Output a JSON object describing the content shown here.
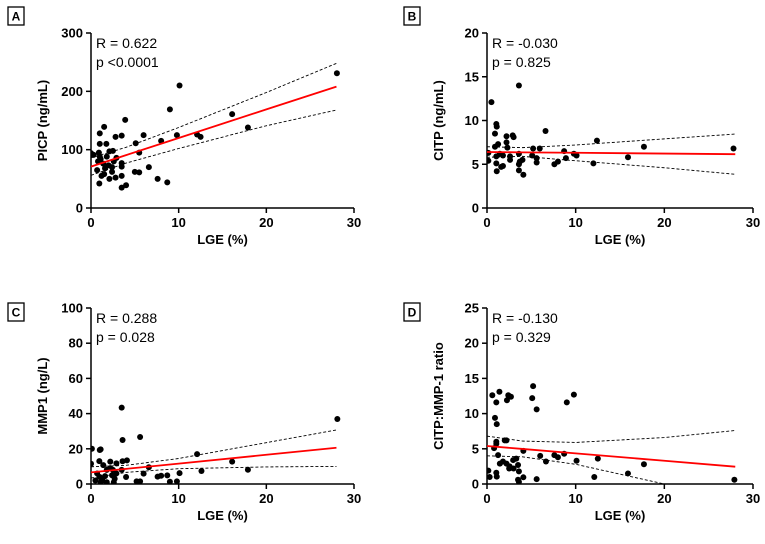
{
  "chart_data": [
    {
      "panel": "A",
      "type": "scatter",
      "xlabel": "LGE (%)",
      "ylabel": "PICP (ng/mL)",
      "xlim": [
        0,
        30
      ],
      "ylim": [
        0,
        300
      ],
      "xticks": [
        "0",
        "10",
        "20",
        "30"
      ],
      "yticks": [
        "0",
        "100",
        "200",
        "300"
      ],
      "stats": [
        "R = 0.622",
        "p <0.0001"
      ],
      "points": [
        [
          28.05,
          231
        ],
        [
          10.1,
          210
        ],
        [
          9.0,
          169
        ],
        [
          16.1,
          161
        ],
        [
          17.9,
          138
        ],
        [
          12.1,
          126
        ],
        [
          12.5,
          122
        ],
        [
          9.8,
          125
        ],
        [
          8.0,
          115
        ],
        [
          3.9,
          151
        ],
        [
          1.5,
          139
        ],
        [
          1.0,
          128
        ],
        [
          2.8,
          122
        ],
        [
          3.5,
          124
        ],
        [
          6.0,
          125
        ],
        [
          5.1,
          111
        ],
        [
          5.5,
          95
        ],
        [
          6.6,
          70
        ],
        [
          7.6,
          50
        ],
        [
          8.7,
          44
        ],
        [
          5.0,
          62
        ],
        [
          5.5,
          61
        ],
        [
          3.5,
          35
        ],
        [
          4.0,
          39
        ],
        [
          0.95,
          42
        ],
        [
          1.2,
          55
        ],
        [
          2.1,
          50
        ],
        [
          2.8,
          52
        ],
        [
          3.5,
          55
        ],
        [
          1.0,
          110
        ],
        [
          1.75,
          110
        ],
        [
          0,
          94
        ],
        [
          0.3,
          91
        ],
        [
          0.9,
          95
        ],
        [
          1.0,
          88
        ],
        [
          2.1,
          97
        ],
        [
          2.5,
          98
        ],
        [
          2.9,
          86
        ],
        [
          0.8,
          80
        ],
        [
          1.4,
          76
        ],
        [
          2.0,
          73
        ],
        [
          2.4,
          70
        ],
        [
          0.7,
          65
        ],
        [
          1.6,
          68
        ],
        [
          2.4,
          62
        ],
        [
          1.1,
          84
        ],
        [
          1.8,
          88
        ],
        [
          3.5,
          71
        ],
        [
          3.5,
          77
        ],
        [
          1.5,
          58
        ],
        [
          2.6,
          80
        ]
      ],
      "fit": {
        "x": [
          0,
          4,
          10,
          20,
          28
        ],
        "y": [
          71,
          90.6,
          120,
          169,
          208
        ]
      },
      "ci_upper": [
        86,
        104,
        138,
        198,
        248
      ],
      "ci_lower": [
        56,
        77,
        102,
        141,
        168
      ]
    },
    {
      "panel": "B",
      "type": "scatter",
      "xlabel": "LGE (%)",
      "ylabel": "CITP (ng/mL)",
      "xlim": [
        0,
        30
      ],
      "ylim": [
        0,
        20
      ],
      "xticks": [
        "0",
        "10",
        "20",
        "30"
      ],
      "yticks": [
        "0",
        "5",
        "10",
        "15",
        "20"
      ],
      "stats": [
        "R = -0.030",
        "p = 0.825"
      ],
      "points": [
        [
          3.6,
          14.0
        ],
        [
          0.5,
          12.1
        ],
        [
          1.05,
          9.6
        ],
        [
          1.1,
          9.3
        ],
        [
          0.9,
          8.5
        ],
        [
          2.2,
          8.2
        ],
        [
          2.9,
          8.3
        ],
        [
          3.0,
          8.1
        ],
        [
          6.6,
          8.8
        ],
        [
          12.4,
          7.7
        ],
        [
          17.7,
          7.0
        ],
        [
          27.8,
          6.8
        ],
        [
          15.9,
          5.8
        ],
        [
          12.0,
          5.1
        ],
        [
          8.7,
          6.5
        ],
        [
          8.9,
          5.7
        ],
        [
          9.8,
          6.2
        ],
        [
          10.1,
          6.0
        ],
        [
          7.6,
          5.0
        ],
        [
          8.0,
          5.3
        ],
        [
          5.2,
          6.8
        ],
        [
          5.95,
          6.8
        ],
        [
          5.1,
          6.0
        ],
        [
          5.6,
          5.7
        ],
        [
          5.6,
          5.2
        ],
        [
          3.6,
          6.2
        ],
        [
          3.7,
          5.3
        ],
        [
          3.6,
          5.0
        ],
        [
          4.0,
          5.5
        ],
        [
          3.6,
          4.3
        ],
        [
          4.1,
          3.8
        ],
        [
          1.1,
          4.2
        ],
        [
          0.15,
          6.3
        ],
        [
          0.15,
          5.4
        ],
        [
          0.9,
          7.0
        ],
        [
          1.25,
          7.3
        ],
        [
          2.2,
          7.5
        ],
        [
          2.3,
          6.9
        ],
        [
          1.05,
          5.9
        ],
        [
          1.45,
          6.2
        ],
        [
          1.8,
          6.0
        ],
        [
          2.6,
          5.9
        ],
        [
          1.8,
          4.8
        ],
        [
          1.6,
          4.7
        ],
        [
          1.05,
          5.1
        ],
        [
          2.6,
          5.5
        ]
      ],
      "fit": {
        "x": [
          0,
          4,
          10,
          20,
          28
        ],
        "y": [
          6.4,
          6.36,
          6.31,
          6.22,
          6.15
        ]
      },
      "ci_upper": [
        7.0,
        6.9,
        7.2,
        7.9,
        8.45
      ],
      "ci_lower": [
        5.8,
        5.9,
        5.4,
        4.6,
        3.85
      ]
    },
    {
      "panel": "C",
      "type": "scatter",
      "xlabel": "LGE (%)",
      "ylabel": "MMP1 (ng/L)",
      "xlim": [
        0,
        30
      ],
      "ylim": [
        0,
        100
      ],
      "xticks": [
        "0",
        "10",
        "20",
        "30"
      ],
      "yticks": [
        "0",
        "20",
        "40",
        "60",
        "80",
        "100"
      ],
      "stats": [
        "R = 0.288",
        "p = 0.028"
      ],
      "points": [
        [
          28.1,
          36.9
        ],
        [
          3.5,
          43.4
        ],
        [
          3.6,
          25
        ],
        [
          5.6,
          26.7
        ],
        [
          12.1,
          17
        ],
        [
          16.1,
          12.7
        ],
        [
          17.9,
          8.1
        ],
        [
          12.6,
          7.4
        ],
        [
          10.1,
          6.2
        ],
        [
          6.6,
          9.5
        ],
        [
          6.0,
          5.9
        ],
        [
          7.6,
          4.2
        ],
        [
          8.0,
          4.7
        ],
        [
          8.7,
          4.9
        ],
        [
          9.0,
          1.3
        ],
        [
          9.8,
          1.5
        ],
        [
          5.2,
          1.5
        ],
        [
          5.6,
          1.5
        ],
        [
          4.0,
          4.0
        ],
        [
          4.1,
          13.4
        ],
        [
          3.6,
          12.9
        ],
        [
          2.9,
          11.7
        ],
        [
          2.2,
          12.7
        ],
        [
          1.0,
          19.3
        ],
        [
          0.1,
          20
        ],
        [
          1.1,
          19.7
        ],
        [
          0,
          11.5
        ],
        [
          0.95,
          13
        ],
        [
          1.4,
          10.7
        ],
        [
          1.8,
          8
        ],
        [
          2.2,
          9
        ],
        [
          2.5,
          8
        ],
        [
          3.5,
          8
        ],
        [
          0.7,
          6
        ],
        [
          1.0,
          4
        ],
        [
          1.6,
          4.5
        ],
        [
          2.4,
          5
        ],
        [
          2.9,
          6
        ],
        [
          0.5,
          2
        ],
        [
          1.1,
          1
        ],
        [
          1.8,
          1
        ],
        [
          2.6,
          1
        ],
        [
          1.3,
          2
        ],
        [
          2.7,
          3
        ]
      ],
      "fit": {
        "x": [
          0,
          4,
          10,
          20,
          28
        ],
        "y": [
          6.6,
          8.6,
          11.6,
          16.6,
          20.6
        ]
      },
      "ci_upper": [
        9.8,
        10.6,
        14.5,
        23.5,
        30.7
      ],
      "ci_lower": [
        3.4,
        6.6,
        8.7,
        9.7,
        10.0
      ]
    },
    {
      "panel": "D",
      "type": "scatter",
      "xlabel": "LGE (%)",
      "ylabel": "CITP:MMP-1 ratio",
      "xlim": [
        0,
        30
      ],
      "ylim": [
        0,
        25
      ],
      "xticks": [
        "0",
        "10",
        "20",
        "30"
      ],
      "yticks": [
        "0",
        "5",
        "10",
        "15",
        "20",
        "25"
      ],
      "stats": [
        "R = -0.130",
        "p = 0.329"
      ],
      "points": [
        [
          27.9,
          0.6
        ],
        [
          17.7,
          2.8
        ],
        [
          15.9,
          1.5
        ],
        [
          12.1,
          1.0
        ],
        [
          12.5,
          3.6
        ],
        [
          10.1,
          3.3
        ],
        [
          9.8,
          12.7
        ],
        [
          9.0,
          11.6
        ],
        [
          5.2,
          13.9
        ],
        [
          5.1,
          12.2
        ],
        [
          5.6,
          10.6
        ],
        [
          8.7,
          4.3
        ],
        [
          7.6,
          4.1
        ],
        [
          8.0,
          3.8
        ],
        [
          6.65,
          3.2
        ],
        [
          6.0,
          4.0
        ],
        [
          5.6,
          0.7
        ],
        [
          4.1,
          4.7
        ],
        [
          0.6,
          12.6
        ],
        [
          1.4,
          13.1
        ],
        [
          1.05,
          11.6
        ],
        [
          2.4,
          12.6
        ],
        [
          2.25,
          11.9
        ],
        [
          2.7,
          12.4
        ],
        [
          0.9,
          9.4
        ],
        [
          1.1,
          8.5
        ],
        [
          2.0,
          6.2
        ],
        [
          2.2,
          6.2
        ],
        [
          1.05,
          6.0
        ],
        [
          1.05,
          5.7
        ],
        [
          0.8,
          5.1
        ],
        [
          0.15,
          1.9
        ],
        [
          0.3,
          1.0
        ],
        [
          1.05,
          1.6
        ],
        [
          1.1,
          1.05
        ],
        [
          3.5,
          0.6
        ],
        [
          3.6,
          0.3
        ],
        [
          4.1,
          0.95
        ],
        [
          3.6,
          1.8
        ],
        [
          1.25,
          4.1
        ],
        [
          1.45,
          2.9
        ],
        [
          1.8,
          3.2
        ],
        [
          2.2,
          2.9
        ],
        [
          2.55,
          2.5
        ],
        [
          2.95,
          3.4
        ],
        [
          3.3,
          3.6
        ],
        [
          3.5,
          2.7
        ],
        [
          2.5,
          2.2
        ],
        [
          3.0,
          2.2
        ]
      ],
      "fit": {
        "x": [
          0,
          4,
          10,
          20,
          28
        ],
        "y": [
          5.4,
          4.98,
          4.35,
          3.3,
          2.46
        ]
      },
      "ci_upper": [
        6.8,
        6.1,
        5.9,
        6.6,
        7.6
      ],
      "ci_lower": [
        4.0,
        3.86,
        2.8,
        0.0,
        -2.7
      ]
    }
  ],
  "colors": {
    "fit": "#ff0000",
    "points": "#000000",
    "ci": "#000000"
  }
}
